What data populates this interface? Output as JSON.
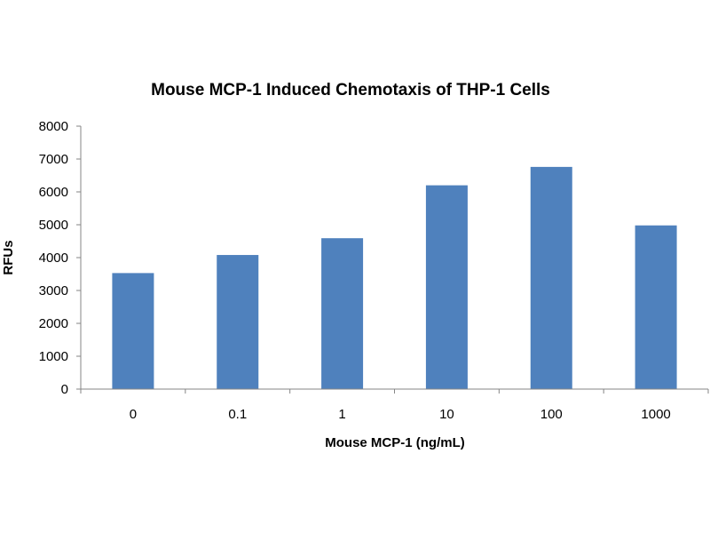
{
  "chart_data": {
    "type": "bar",
    "title": "Mouse MCP-1 Induced Chemotaxis of THP-1 Cells",
    "xlabel": "Mouse MCP-1 (ng/mL)",
    "ylabel": "RFUs",
    "categories": [
      "0",
      "0.1",
      "1",
      "10",
      "100",
      "1000"
    ],
    "values": [
      3530,
      4080,
      4590,
      6200,
      6760,
      4980
    ],
    "ylim": [
      0,
      8000
    ],
    "yticks": [
      "0",
      "1000",
      "2000",
      "3000",
      "4000",
      "5000",
      "6000",
      "7000",
      "8000"
    ],
    "grid": false,
    "legend": "none",
    "bar_color": "#4F81BD",
    "axis_color": "#868686"
  }
}
